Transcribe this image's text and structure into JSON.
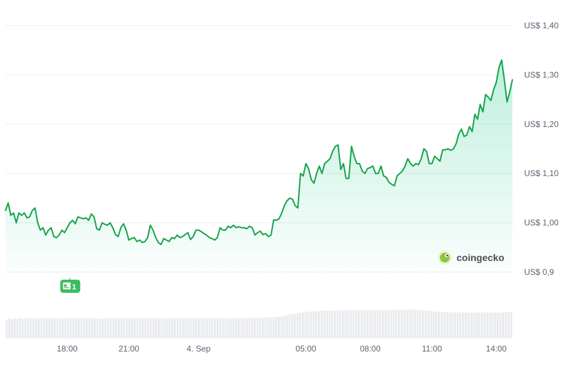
{
  "chart_data": {
    "type": "area",
    "series": [
      {
        "values": [
          1.025,
          1.04,
          1.015,
          1.02,
          1.0,
          1.02,
          1.015,
          1.02,
          1.01,
          1.012,
          1.025,
          1.03,
          1.0,
          0.985,
          0.99,
          0.975,
          0.985,
          0.99,
          0.972,
          0.97,
          0.975,
          0.985,
          0.98,
          0.99,
          1.0,
          1.005,
          0.998,
          1.012,
          1.01,
          1.008,
          1.01,
          1.005,
          1.018,
          1.012,
          0.988,
          0.985,
          1.0,
          0.997,
          0.995,
          1.0,
          0.99,
          0.976,
          0.972,
          0.99,
          0.998,
          0.985,
          0.965,
          0.968,
          0.97,
          0.962,
          0.965,
          0.96,
          0.962,
          0.97,
          0.995,
          0.985,
          0.97,
          0.96,
          0.956,
          0.968,
          0.965,
          0.962,
          0.97,
          0.968,
          0.975,
          0.97,
          0.972,
          0.976,
          0.98,
          0.966,
          0.972,
          0.985,
          0.985,
          0.982,
          0.978,
          0.975,
          0.97,
          0.968,
          0.965,
          0.97,
          0.99,
          0.985,
          0.985,
          0.993,
          0.99,
          0.995,
          0.99,
          0.992,
          0.99,
          0.99,
          0.988,
          0.993,
          0.99,
          0.975,
          0.98,
          0.983,
          0.976,
          0.978,
          0.972,
          0.975,
          1.006,
          1.005,
          1.008,
          1.02,
          1.035,
          1.045,
          1.05,
          1.048,
          1.035,
          1.03,
          1.1,
          1.095,
          1.12,
          1.11,
          1.088,
          1.08,
          1.1,
          1.115,
          1.1,
          1.12,
          1.125,
          1.13,
          1.145,
          1.155,
          1.158,
          1.108,
          1.12,
          1.09,
          1.09,
          1.155,
          1.135,
          1.12,
          1.12,
          1.105,
          1.1,
          1.11,
          1.112,
          1.115,
          1.1,
          1.1,
          1.115,
          1.095,
          1.092,
          1.082,
          1.078,
          1.075,
          1.095,
          1.1,
          1.105,
          1.115,
          1.13,
          1.12,
          1.115,
          1.12,
          1.118,
          1.13,
          1.15,
          1.145,
          1.12,
          1.12,
          1.135,
          1.13,
          1.125,
          1.148,
          1.148,
          1.15,
          1.147,
          1.15,
          1.16,
          1.18,
          1.19,
          1.175,
          1.178,
          1.195,
          1.185,
          1.22,
          1.21,
          1.24,
          1.225,
          1.26,
          1.255,
          1.248,
          1.27,
          1.285,
          1.315,
          1.33,
          1.29,
          1.245,
          1.265,
          1.29
        ]
      }
    ],
    "volume": [
      0.9,
      0.95,
      0.92,
      0.97,
      0.93,
      0.98,
      0.94,
      0.99,
      0.95,
      0.97,
      0.96,
      0.98,
      0.95,
      0.97,
      0.96,
      0.99,
      0.97,
      0.98,
      0.96,
      0.97,
      0.95,
      0.98,
      0.96,
      0.99,
      0.97,
      0.98,
      0.96,
      0.97,
      0.97,
      0.99,
      0.96,
      0.98,
      0.97,
      0.98,
      0.96,
      0.97,
      0.95,
      0.98,
      0.97,
      0.98,
      0.96,
      0.97,
      0.97,
      0.99,
      0.96,
      0.98,
      0.97,
      0.98,
      0.96,
      0.97,
      0.96,
      0.98,
      0.97,
      0.99,
      0.96,
      0.98,
      0.97,
      0.98,
      0.96,
      0.97,
      0.97,
      0.98,
      0.96,
      0.97,
      0.97,
      0.99,
      0.96,
      0.98,
      0.97,
      0.98,
      0.96,
      0.97,
      0.97,
      0.98,
      0.96,
      0.98,
      0.97,
      0.99,
      0.96,
      0.97,
      0.97,
      0.98,
      0.96,
      0.97,
      0.97,
      0.98,
      0.96,
      0.98,
      0.97,
      0.99,
      0.97,
      0.98,
      0.97,
      0.99,
      0.98,
      1.0,
      0.99,
      1.01,
      1.0,
      1.02,
      1.02,
      1.04,
      1.05,
      1.07,
      1.09,
      1.12,
      1.15,
      1.18,
      1.2,
      1.22,
      1.24,
      1.26,
      1.27,
      1.29,
      1.3,
      1.31,
      1.3,
      1.32,
      1.33,
      1.34,
      1.33,
      1.34,
      1.35,
      1.35,
      1.34,
      1.36,
      1.35,
      1.36,
      1.35,
      1.36,
      1.35,
      1.36,
      1.36,
      1.37,
      1.35,
      1.36,
      1.36,
      1.37,
      1.35,
      1.36,
      1.35,
      1.36,
      1.36,
      1.37,
      1.36,
      1.37,
      1.36,
      1.38,
      1.37,
      1.38,
      1.37,
      1.39,
      1.4,
      1.38,
      1.37,
      1.36,
      1.35,
      1.34,
      1.33,
      1.32,
      1.3,
      1.29,
      1.28,
      1.27,
      1.27,
      1.26,
      1.26,
      1.25,
      1.25,
      1.26,
      1.25,
      1.25,
      1.26,
      1.25,
      1.24,
      1.25,
      1.25,
      1.24,
      1.25,
      1.26,
      1.25,
      1.24,
      1.25,
      1.26,
      1.25,
      1.24,
      1.25,
      1.26,
      1.27,
      1.28
    ],
    "ylim": [
      0.83,
      1.43
    ],
    "y_ticks": [
      {
        "value": 1.4,
        "label": "US$ 1,40"
      },
      {
        "value": 1.3,
        "label": "US$ 1,30"
      },
      {
        "value": 1.2,
        "label": "US$ 1,20"
      },
      {
        "value": 1.1,
        "label": "US$ 1,10"
      },
      {
        "value": 1.0,
        "label": "US$ 1,00"
      },
      {
        "value": 0.9,
        "label": "US$ 0,9"
      }
    ],
    "x_ticks": [
      {
        "index": 23,
        "label": "18:00"
      },
      {
        "index": 46,
        "label": "21:00"
      },
      {
        "index": 72,
        "label": "4. Sep"
      },
      {
        "index": 112,
        "label": "05:00"
      },
      {
        "index": 136,
        "label": "08:00"
      },
      {
        "index": 159,
        "label": "11:00"
      },
      {
        "index": 183,
        "label": "14:00"
      }
    ],
    "grid": true,
    "line_color": "#16a34a",
    "area_color": "#16c784",
    "volume_color": "#e9ebee",
    "annotation": {
      "index": 24,
      "icon": "news-icon",
      "count": "1",
      "color": "#3bbd5f"
    },
    "watermark": {
      "text": "coingecko",
      "icon": "gecko-logo-icon"
    }
  }
}
